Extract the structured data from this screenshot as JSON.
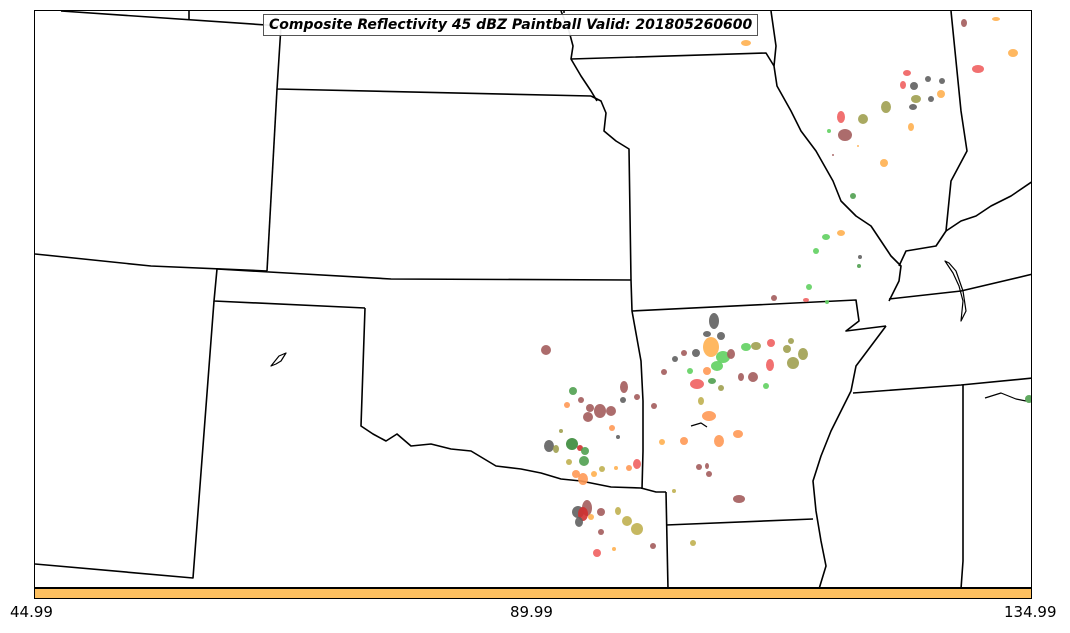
{
  "title": "Composite Reflectivity 45 dBZ Paintball Valid: 201805260600",
  "colorbar": {
    "color": "#fdc060",
    "tick_labels": [
      "44.99",
      "89.99",
      "134.99"
    ]
  },
  "palette": [
    "#606060",
    "#a35c5c",
    "#f06060",
    "#ffb050",
    "#ff9955",
    "#60d060",
    "#50a050",
    "#a0a050",
    "#c0b050",
    "#d03030",
    "#3a8a3a"
  ]
}
